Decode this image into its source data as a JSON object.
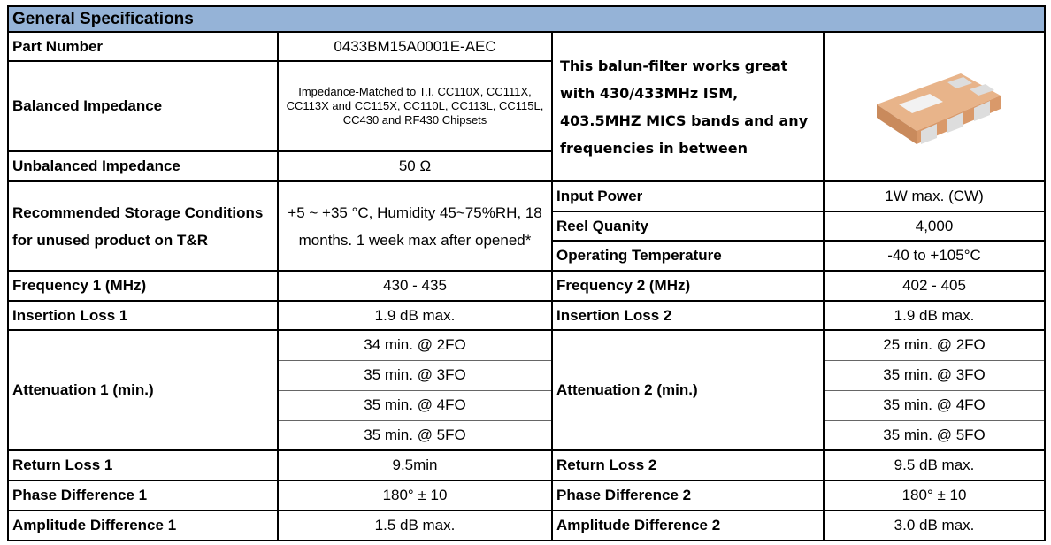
{
  "table": {
    "title": "General Specifications",
    "part_number": [
      "Part Number",
      "0433BM15A0001E-AEC"
    ],
    "balanced_impedance": [
      "Balanced Impedance",
      "Impedance-Matched to T.I. CC110X, CC111X, CC113X and CC115X, CC110L, CC113L, CC115L, CC430 and RF430 Chipsets"
    ],
    "unbalanced_impedance": [
      "Unbalanced Impedance",
      "50 Ω"
    ],
    "description": "This balun-filter works great with 430/433MHz ISM, 403.5MHZ MICS bands and any frequencies in between",
    "storage": [
      "Recommended Storage Conditions for unused product on T&R",
      "+5 ~ +35 °C, Humidity 45~75%RH, 18 months. 1 week max after opened*"
    ],
    "input_power": [
      "Input Power",
      "1W max. (CW)"
    ],
    "reel_quantity": [
      "Reel Quanity",
      "4,000"
    ],
    "operating_temperature": [
      "Operating Temperature",
      "-40 to +105°C"
    ],
    "frequency": [
      "Frequency 1 (MHz)",
      "430 - 435",
      "Frequency 2 (MHz)",
      "402 - 405"
    ],
    "insertion_loss": [
      "Insertion Loss 1",
      "1.9 dB max.",
      "Insertion Loss 2",
      "1.9 dB max."
    ],
    "attenuation": [
      "Attenuation 1 (min.)",
      [
        "34 min. @ 2FO",
        "35 min. @ 3FO",
        "35 min. @ 4FO",
        "35 min. @ 5FO"
      ],
      "Attenuation 2 (min.)",
      [
        "25 min. @ 2FO",
        "35 min. @ 3FO",
        "35 min. @ 4FO",
        "35 min. @ 5FO"
      ]
    ],
    "return_loss": [
      "Return Loss 1",
      "9.5min",
      "Return Loss 2",
      "9.5 dB max."
    ],
    "phase_difference": [
      "Phase Difference 1",
      "180° ± 10",
      "Phase Difference 2",
      "180° ± 10"
    ],
    "amplitude_difference": [
      "Amplitude Difference 1",
      "1.5 dB max.",
      "Amplitude Difference 2",
      "3.0 dB max."
    ]
  }
}
